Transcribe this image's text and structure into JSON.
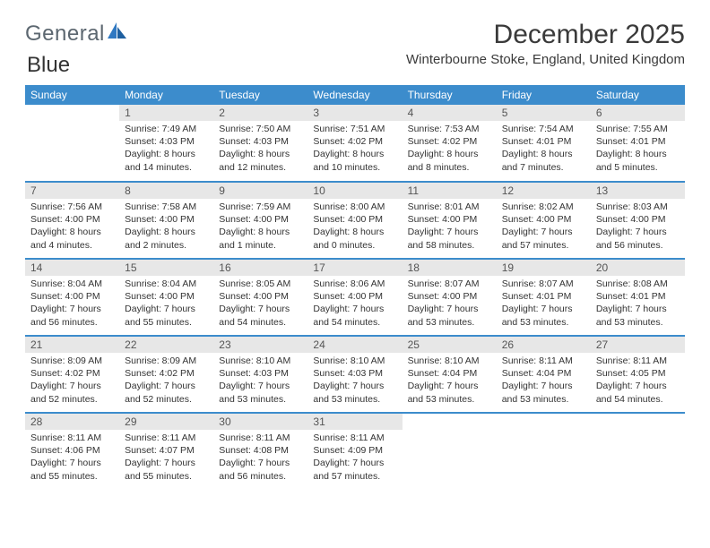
{
  "brand": {
    "word1": "General",
    "word2": "Blue"
  },
  "title": "December 2025",
  "location": "Winterbourne Stoke, England, United Kingdom",
  "colors": {
    "header_bg": "#3c8ccc",
    "header_text": "#ffffff",
    "daynum_bg": "#e7e7e7",
    "rule": "#3c8ccc",
    "logo_gray": "#5c6770",
    "logo_blue": "#2f78c2"
  },
  "day_headers": [
    "Sunday",
    "Monday",
    "Tuesday",
    "Wednesday",
    "Thursday",
    "Friday",
    "Saturday"
  ],
  "weeks": [
    [
      {
        "n": "",
        "sr": "",
        "ss": "",
        "dl": ""
      },
      {
        "n": "1",
        "sr": "7:49 AM",
        "ss": "4:03 PM",
        "dl": "8 hours and 14 minutes."
      },
      {
        "n": "2",
        "sr": "7:50 AM",
        "ss": "4:03 PM",
        "dl": "8 hours and 12 minutes."
      },
      {
        "n": "3",
        "sr": "7:51 AM",
        "ss": "4:02 PM",
        "dl": "8 hours and 10 minutes."
      },
      {
        "n": "4",
        "sr": "7:53 AM",
        "ss": "4:02 PM",
        "dl": "8 hours and 8 minutes."
      },
      {
        "n": "5",
        "sr": "7:54 AM",
        "ss": "4:01 PM",
        "dl": "8 hours and 7 minutes."
      },
      {
        "n": "6",
        "sr": "7:55 AM",
        "ss": "4:01 PM",
        "dl": "8 hours and 5 minutes."
      }
    ],
    [
      {
        "n": "7",
        "sr": "7:56 AM",
        "ss": "4:00 PM",
        "dl": "8 hours and 4 minutes."
      },
      {
        "n": "8",
        "sr": "7:58 AM",
        "ss": "4:00 PM",
        "dl": "8 hours and 2 minutes."
      },
      {
        "n": "9",
        "sr": "7:59 AM",
        "ss": "4:00 PM",
        "dl": "8 hours and 1 minute."
      },
      {
        "n": "10",
        "sr": "8:00 AM",
        "ss": "4:00 PM",
        "dl": "8 hours and 0 minutes."
      },
      {
        "n": "11",
        "sr": "8:01 AM",
        "ss": "4:00 PM",
        "dl": "7 hours and 58 minutes."
      },
      {
        "n": "12",
        "sr": "8:02 AM",
        "ss": "4:00 PM",
        "dl": "7 hours and 57 minutes."
      },
      {
        "n": "13",
        "sr": "8:03 AM",
        "ss": "4:00 PM",
        "dl": "7 hours and 56 minutes."
      }
    ],
    [
      {
        "n": "14",
        "sr": "8:04 AM",
        "ss": "4:00 PM",
        "dl": "7 hours and 56 minutes."
      },
      {
        "n": "15",
        "sr": "8:04 AM",
        "ss": "4:00 PM",
        "dl": "7 hours and 55 minutes."
      },
      {
        "n": "16",
        "sr": "8:05 AM",
        "ss": "4:00 PM",
        "dl": "7 hours and 54 minutes."
      },
      {
        "n": "17",
        "sr": "8:06 AM",
        "ss": "4:00 PM",
        "dl": "7 hours and 54 minutes."
      },
      {
        "n": "18",
        "sr": "8:07 AM",
        "ss": "4:00 PM",
        "dl": "7 hours and 53 minutes."
      },
      {
        "n": "19",
        "sr": "8:07 AM",
        "ss": "4:01 PM",
        "dl": "7 hours and 53 minutes."
      },
      {
        "n": "20",
        "sr": "8:08 AM",
        "ss": "4:01 PM",
        "dl": "7 hours and 53 minutes."
      }
    ],
    [
      {
        "n": "21",
        "sr": "8:09 AM",
        "ss": "4:02 PM",
        "dl": "7 hours and 52 minutes."
      },
      {
        "n": "22",
        "sr": "8:09 AM",
        "ss": "4:02 PM",
        "dl": "7 hours and 52 minutes."
      },
      {
        "n": "23",
        "sr": "8:10 AM",
        "ss": "4:03 PM",
        "dl": "7 hours and 53 minutes."
      },
      {
        "n": "24",
        "sr": "8:10 AM",
        "ss": "4:03 PM",
        "dl": "7 hours and 53 minutes."
      },
      {
        "n": "25",
        "sr": "8:10 AM",
        "ss": "4:04 PM",
        "dl": "7 hours and 53 minutes."
      },
      {
        "n": "26",
        "sr": "8:11 AM",
        "ss": "4:04 PM",
        "dl": "7 hours and 53 minutes."
      },
      {
        "n": "27",
        "sr": "8:11 AM",
        "ss": "4:05 PM",
        "dl": "7 hours and 54 minutes."
      }
    ],
    [
      {
        "n": "28",
        "sr": "8:11 AM",
        "ss": "4:06 PM",
        "dl": "7 hours and 55 minutes."
      },
      {
        "n": "29",
        "sr": "8:11 AM",
        "ss": "4:07 PM",
        "dl": "7 hours and 55 minutes."
      },
      {
        "n": "30",
        "sr": "8:11 AM",
        "ss": "4:08 PM",
        "dl": "7 hours and 56 minutes."
      },
      {
        "n": "31",
        "sr": "8:11 AM",
        "ss": "4:09 PM",
        "dl": "7 hours and 57 minutes."
      },
      {
        "n": "",
        "sr": "",
        "ss": "",
        "dl": ""
      },
      {
        "n": "",
        "sr": "",
        "ss": "",
        "dl": ""
      },
      {
        "n": "",
        "sr": "",
        "ss": "",
        "dl": ""
      }
    ]
  ],
  "labels": {
    "sunrise": "Sunrise:",
    "sunset": "Sunset:",
    "daylight": "Daylight:"
  }
}
